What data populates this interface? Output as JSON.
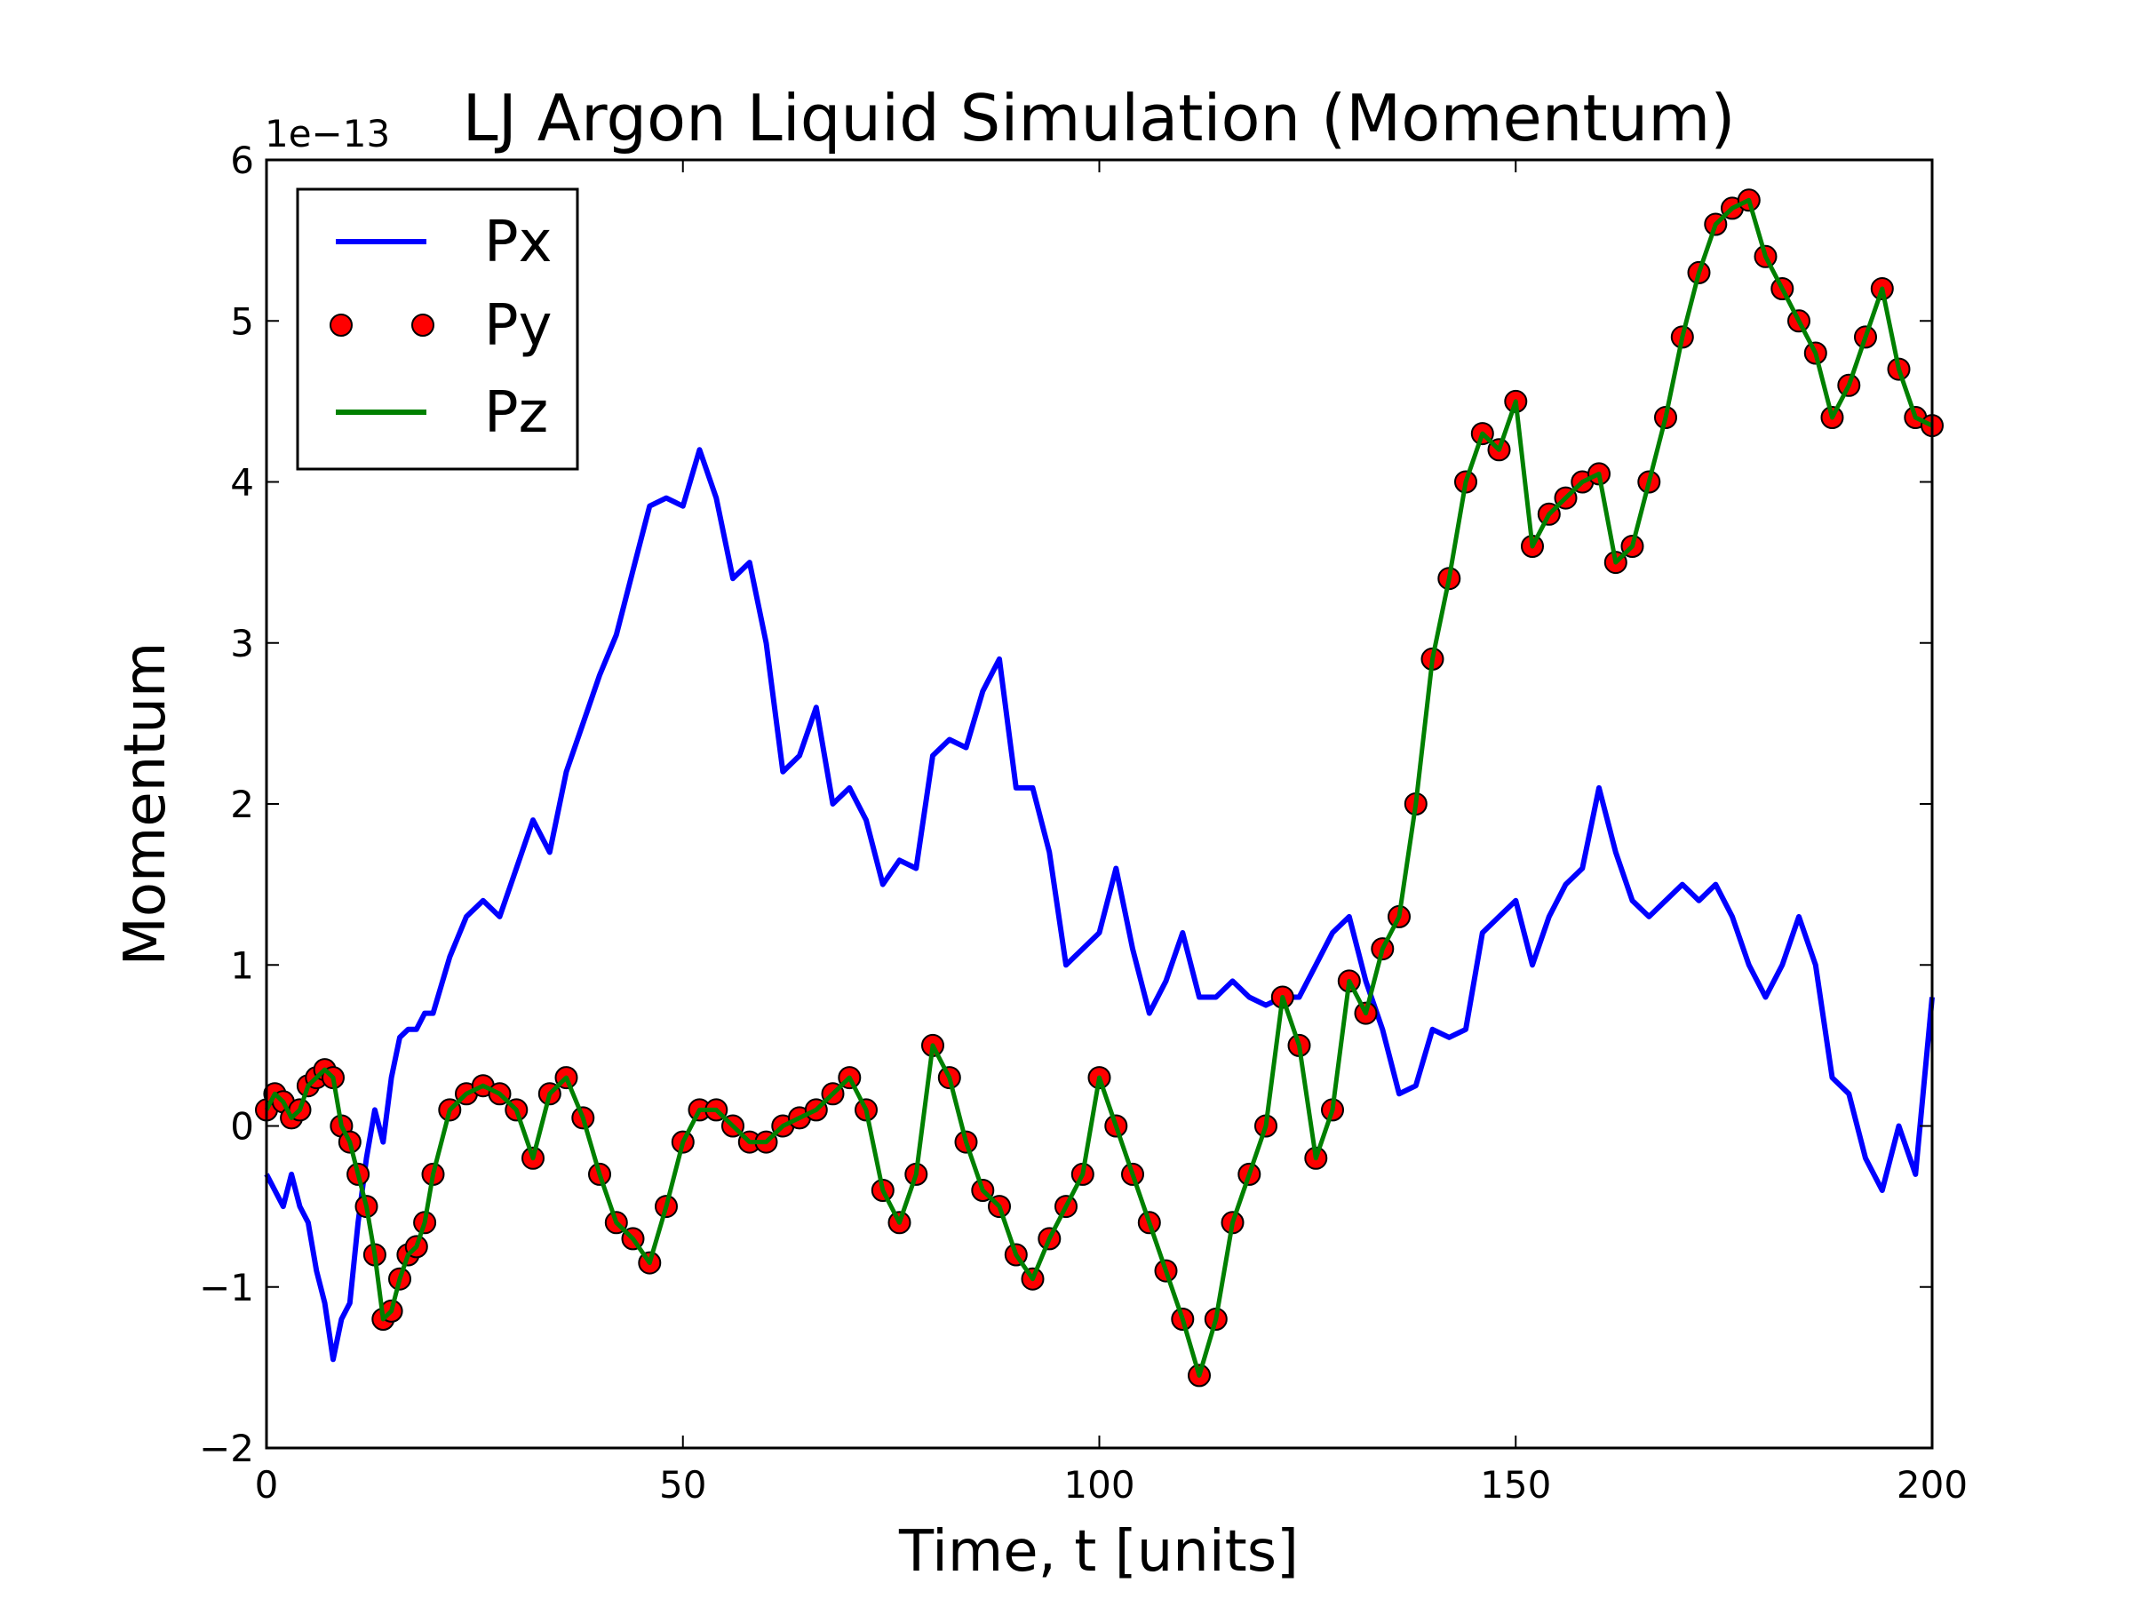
{
  "chart_data": {
    "type": "line",
    "title": "LJ Argon Liquid Simulation (Momentum)",
    "xlabel": "Time, t [units]",
    "ylabel": "Momentum",
    "y_offset_text": "1e−13",
    "xlim": [
      0,
      200
    ],
    "ylim": [
      -2,
      6
    ],
    "xticks": [
      0,
      50,
      100,
      150,
      200
    ],
    "xtick_labels": [
      "0",
      "50",
      "100",
      "150",
      "200"
    ],
    "yticks": [
      -2,
      -1,
      0,
      1,
      2,
      3,
      4,
      5,
      6
    ],
    "ytick_labels": [
      "−2",
      "−1",
      "0",
      "1",
      "2",
      "3",
      "4",
      "5",
      "6"
    ],
    "grid": false,
    "legend_position": "top-left",
    "series": [
      {
        "name": "Px",
        "style": "line",
        "color": "#0000ff",
        "x": [
          0,
          1,
          2,
          3,
          4,
          5,
          6,
          7,
          8,
          9,
          10,
          11,
          12,
          13,
          14,
          15,
          16,
          17,
          18,
          19,
          20,
          22,
          24,
          26,
          28,
          30,
          32,
          34,
          36,
          38,
          40,
          42,
          44,
          46,
          48,
          50,
          52,
          54,
          56,
          58,
          60,
          62,
          64,
          66,
          68,
          70,
          72,
          74,
          76,
          78,
          80,
          82,
          84,
          86,
          88,
          90,
          92,
          94,
          96,
          98,
          100,
          102,
          104,
          106,
          108,
          110,
          112,
          114,
          116,
          118,
          120,
          122,
          124,
          126,
          128,
          130,
          132,
          134,
          136,
          138,
          140,
          142,
          144,
          146,
          148,
          150,
          152,
          154,
          156,
          158,
          160,
          162,
          164,
          166,
          168,
          170,
          172,
          174,
          176,
          178,
          180,
          182,
          184,
          186,
          188,
          190,
          192,
          194,
          196,
          198,
          200
        ],
        "values": [
          -0.3,
          -0.4,
          -0.5,
          -0.3,
          -0.5,
          -0.6,
          -0.9,
          -1.1,
          -1.45,
          -1.2,
          -1.1,
          -0.6,
          -0.2,
          0.1,
          -0.1,
          0.3,
          0.55,
          0.6,
          0.6,
          0.7,
          0.7,
          1.05,
          1.3,
          1.4,
          1.3,
          1.6,
          1.9,
          1.7,
          2.2,
          2.5,
          2.8,
          3.05,
          3.45,
          3.85,
          3.9,
          3.85,
          4.2,
          3.9,
          3.4,
          3.5,
          3.0,
          2.2,
          2.3,
          2.6,
          2.0,
          2.1,
          1.9,
          1.5,
          1.65,
          1.6,
          2.3,
          2.4,
          2.35,
          2.7,
          2.9,
          2.1,
          2.1,
          1.7,
          1.0,
          1.1,
          1.2,
          1.6,
          1.1,
          0.7,
          0.9,
          1.2,
          0.8,
          0.8,
          0.9,
          0.8,
          0.75,
          0.8,
          0.8,
          1.0,
          1.2,
          1.3,
          0.9,
          0.6,
          0.2,
          0.25,
          0.6,
          0.55,
          0.6,
          1.2,
          1.3,
          1.4,
          1.0,
          1.3,
          1.5,
          1.6,
          2.1,
          1.7,
          1.4,
          1.3,
          1.4,
          1.5,
          1.4,
          1.5,
          1.3,
          1.0,
          0.8,
          1.0,
          1.3,
          1.0,
          0.3,
          0.2,
          -0.2,
          -0.4,
          0.0,
          -0.3,
          0.8
        ]
      },
      {
        "name": "Py",
        "style": "markers",
        "color": "#ff0000",
        "x": [
          0,
          1,
          2,
          3,
          4,
          5,
          6,
          7,
          8,
          9,
          10,
          11,
          12,
          13,
          14,
          15,
          16,
          17,
          18,
          19,
          20,
          22,
          24,
          26,
          28,
          30,
          32,
          34,
          36,
          38,
          40,
          42,
          44,
          46,
          48,
          50,
          52,
          54,
          56,
          58,
          60,
          62,
          64,
          66,
          68,
          70,
          72,
          74,
          76,
          78,
          80,
          82,
          84,
          86,
          88,
          90,
          92,
          94,
          96,
          98,
          100,
          102,
          104,
          106,
          108,
          110,
          112,
          114,
          116,
          118,
          120,
          122,
          124,
          126,
          128,
          130,
          132,
          134,
          136,
          138,
          140,
          142,
          144,
          146,
          148,
          150,
          152,
          154,
          156,
          158,
          160,
          162,
          164,
          166,
          168,
          170,
          172,
          174,
          176,
          178,
          180,
          182,
          184,
          186,
          188,
          190,
          192,
          194,
          196,
          198,
          200
        ],
        "values": [
          0.1,
          0.2,
          0.15,
          0.05,
          0.1,
          0.25,
          0.3,
          0.35,
          0.3,
          0.0,
          -0.1,
          -0.3,
          -0.5,
          -0.8,
          -1.2,
          -1.15,
          -0.95,
          -0.8,
          -0.75,
          -0.6,
          -0.3,
          0.1,
          0.2,
          0.25,
          0.2,
          0.1,
          -0.2,
          0.2,
          0.3,
          0.05,
          -0.3,
          -0.6,
          -0.7,
          -0.85,
          -0.5,
          -0.1,
          0.1,
          0.1,
          0.0,
          -0.1,
          -0.1,
          0.0,
          0.05,
          0.1,
          0.2,
          0.3,
          0.1,
          -0.4,
          -0.6,
          -0.3,
          0.5,
          0.3,
          -0.1,
          -0.4,
          -0.5,
          -0.8,
          -0.95,
          -0.7,
          -0.5,
          -0.3,
          0.3,
          0.0,
          -0.3,
          -0.6,
          -0.9,
          -1.2,
          -1.55,
          -1.2,
          -0.6,
          -0.3,
          0.0,
          0.8,
          0.5,
          -0.2,
          0.1,
          0.9,
          0.7,
          1.1,
          1.3,
          2.0,
          2.9,
          3.4,
          4.0,
          4.3,
          4.2,
          4.5,
          3.6,
          3.8,
          3.9,
          4.0,
          4.05,
          3.5,
          3.6,
          4.0,
          4.4,
          4.9,
          5.3,
          5.6,
          5.7,
          5.75,
          5.4,
          5.2,
          5.0,
          4.8,
          4.4,
          4.6,
          4.9,
          5.2,
          4.7,
          4.4,
          4.35
        ]
      },
      {
        "name": "Pz",
        "style": "line",
        "color": "#008000",
        "x": [
          0,
          1,
          2,
          3,
          4,
          5,
          6,
          7,
          8,
          9,
          10,
          11,
          12,
          13,
          14,
          15,
          16,
          17,
          18,
          19,
          20,
          22,
          24,
          26,
          28,
          30,
          32,
          34,
          36,
          38,
          40,
          42,
          44,
          46,
          48,
          50,
          52,
          54,
          56,
          58,
          60,
          62,
          64,
          66,
          68,
          70,
          72,
          74,
          76,
          78,
          80,
          82,
          84,
          86,
          88,
          90,
          92,
          94,
          96,
          98,
          100,
          102,
          104,
          106,
          108,
          110,
          112,
          114,
          116,
          118,
          120,
          122,
          124,
          126,
          128,
          130,
          132,
          134,
          136,
          138,
          140,
          142,
          144,
          146,
          148,
          150,
          152,
          154,
          156,
          158,
          160,
          162,
          164,
          166,
          168,
          170,
          172,
          174,
          176,
          178,
          180,
          182,
          184,
          186,
          188,
          190,
          192,
          194,
          196,
          198,
          200
        ],
        "values": [
          0.1,
          0.2,
          0.15,
          0.05,
          0.1,
          0.25,
          0.3,
          0.35,
          0.3,
          0.0,
          -0.1,
          -0.3,
          -0.5,
          -0.8,
          -1.2,
          -1.15,
          -0.95,
          -0.8,
          -0.75,
          -0.6,
          -0.3,
          0.1,
          0.2,
          0.25,
          0.2,
          0.1,
          -0.2,
          0.2,
          0.3,
          0.05,
          -0.3,
          -0.6,
          -0.7,
          -0.85,
          -0.5,
          -0.1,
          0.1,
          0.1,
          0.0,
          -0.1,
          -0.1,
          0.0,
          0.05,
          0.1,
          0.2,
          0.3,
          0.1,
          -0.4,
          -0.6,
          -0.3,
          0.5,
          0.3,
          -0.1,
          -0.4,
          -0.5,
          -0.8,
          -0.95,
          -0.7,
          -0.5,
          -0.3,
          0.3,
          0.0,
          -0.3,
          -0.6,
          -0.9,
          -1.2,
          -1.55,
          -1.2,
          -0.6,
          -0.3,
          0.0,
          0.8,
          0.5,
          -0.2,
          0.1,
          0.9,
          0.7,
          1.1,
          1.3,
          2.0,
          2.9,
          3.4,
          4.0,
          4.3,
          4.2,
          4.5,
          3.6,
          3.8,
          3.9,
          4.0,
          4.05,
          3.5,
          3.6,
          4.0,
          4.4,
          4.9,
          5.3,
          5.6,
          5.7,
          5.75,
          5.4,
          5.2,
          5.0,
          4.8,
          4.4,
          4.6,
          4.9,
          5.2,
          4.7,
          4.4,
          4.35
        ]
      }
    ]
  }
}
